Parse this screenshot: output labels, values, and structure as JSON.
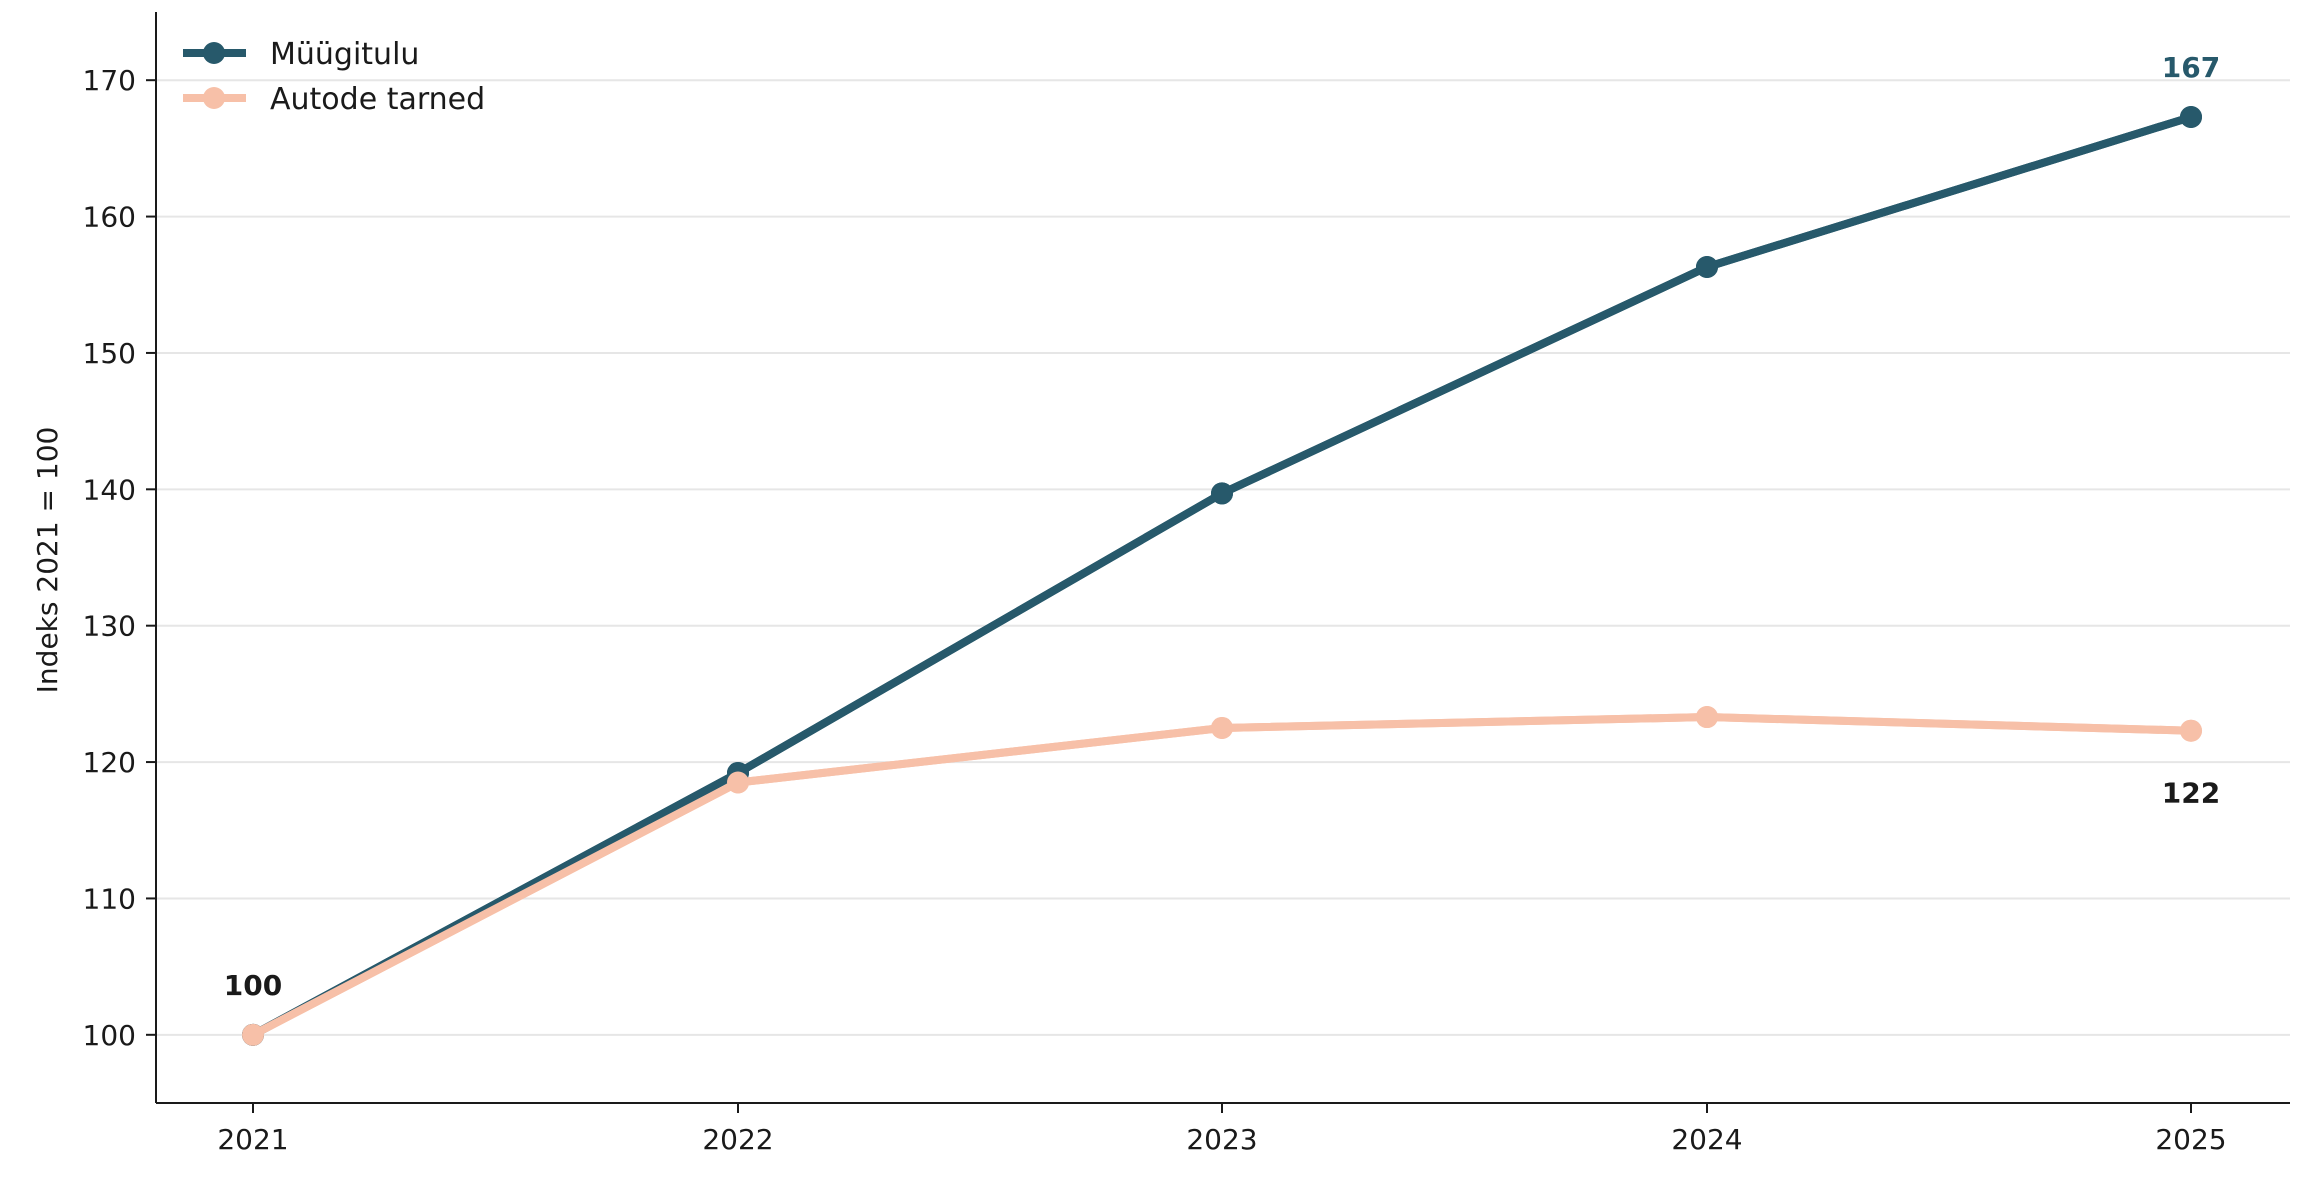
{
  "chart_data": {
    "type": "line",
    "x": [
      2021,
      2022,
      2023,
      2024,
      2025
    ],
    "series": [
      {
        "name": "Müügitulu",
        "values": [
          100,
          119.2,
          139.7,
          156.3,
          167.3
        ],
        "color": "#27596b"
      },
      {
        "name": "Autode tarned",
        "values": [
          100,
          118.5,
          122.5,
          123.3,
          122.3
        ],
        "color": "#f7c0a8"
      }
    ],
    "ylabel": "Indeks 2021 = 100",
    "xlabel": "",
    "ylim": [
      95,
      175
    ],
    "yticks": [
      100,
      110,
      120,
      130,
      140,
      150,
      160,
      170
    ],
    "grid": "horizontal",
    "legend": "top-left",
    "annotations": [
      {
        "text": "100",
        "x": 2021,
        "y": 100,
        "color": "#1a1a1a",
        "placement": "above"
      },
      {
        "text": "167",
        "x": 2025,
        "y": 167.3,
        "color": "#27596b",
        "placement": "above"
      },
      {
        "text": "122",
        "x": 2025,
        "y": 122.3,
        "color": "#1a1a1a",
        "placement": "below"
      }
    ]
  }
}
